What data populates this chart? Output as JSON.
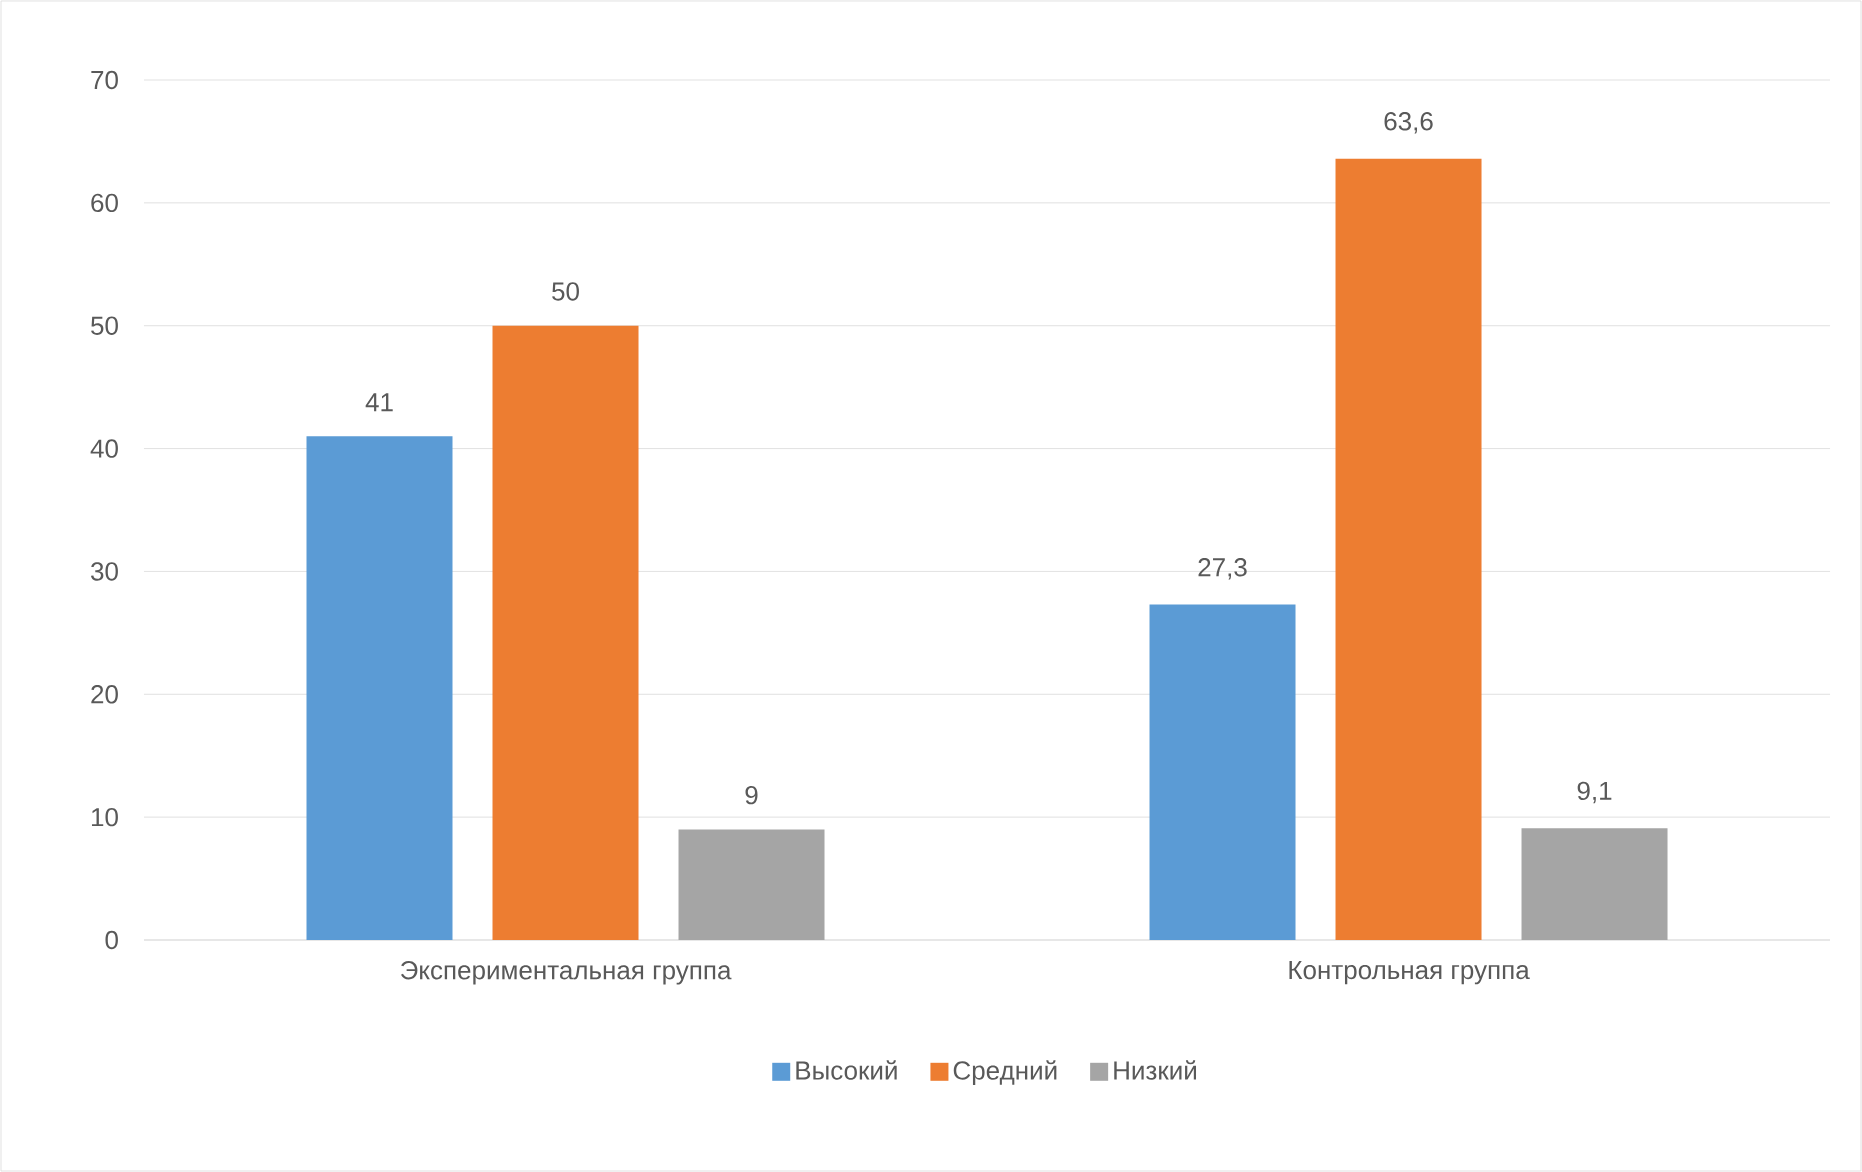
{
  "chart_data": {
    "type": "bar",
    "categories": [
      "Экспериментальная группа",
      "Контрольная группа"
    ],
    "series": [
      {
        "name": "Высокий",
        "color": "#5b9bd5",
        "values": [
          41,
          27.3
        ],
        "value_labels": [
          "41",
          "27,3"
        ]
      },
      {
        "name": "Средний",
        "color": "#ed7d31",
        "values": [
          50,
          63.6
        ],
        "value_labels": [
          "50",
          "63,6"
        ]
      },
      {
        "name": "Низкий",
        "color": "#a5a5a5",
        "values": [
          9,
          9.1
        ],
        "value_labels": [
          "9",
          "9,1"
        ]
      }
    ],
    "ylim": [
      0,
      70
    ],
    "yticks": [
      0,
      10,
      20,
      30,
      40,
      50,
      60,
      70
    ],
    "grid": "y",
    "legend": "bottom"
  }
}
